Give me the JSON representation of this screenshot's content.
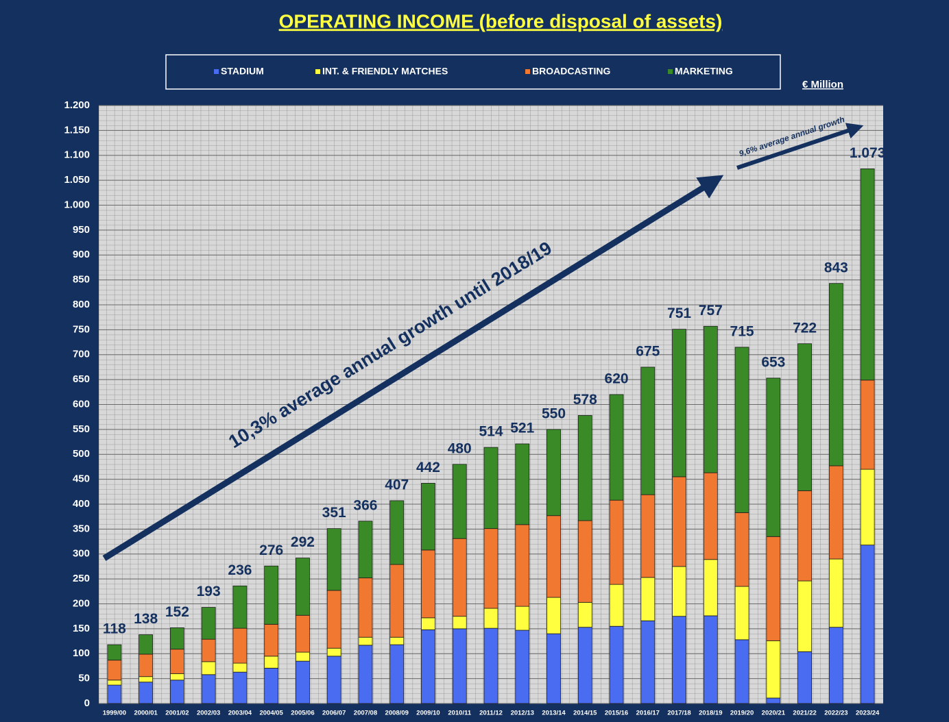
{
  "chart_data": {
    "type": "stacked_bar",
    "title": "OPERATING INCOME (before disposal of assets)",
    "unit_label": "€ Million",
    "annotations": [
      "10,3% average annual growth until 2018/19",
      "9,6% average annual growth"
    ],
    "categories": [
      "1999/00",
      "2000/01",
      "2001/02",
      "2002/03",
      "2003/04",
      "2004/05",
      "2005/06",
      "2006/07",
      "2007/08",
      "2008/09",
      "2009/10",
      "2010/11",
      "2011/12",
      "2012/13",
      "2013/14",
      "2014/15",
      "2015/16",
      "2016/17",
      "2017/18",
      "2018/19",
      "2019/20",
      "2020/21",
      "2021/22",
      "2022/23",
      "2023/24"
    ],
    "series": [
      {
        "name": "STADIUM",
        "color": "#4a6cf0",
        "values": [
          37,
          43,
          47,
          58,
          63,
          71,
          85,
          95,
          117,
          118,
          148,
          150,
          151,
          147,
          140,
          153,
          155,
          166,
          175,
          176,
          128,
          11,
          104,
          153,
          318
        ]
      },
      {
        "name": "INT. & FRIENDLY MATCHES",
        "color": "#ffff40",
        "values": [
          10,
          11,
          13,
          26,
          18,
          24,
          18,
          16,
          16,
          15,
          24,
          25,
          40,
          48,
          73,
          50,
          84,
          87,
          100,
          113,
          107,
          115,
          142,
          137,
          152
        ]
      },
      {
        "name": "BROADCASTING",
        "color": "#f07830",
        "values": [
          40,
          45,
          49,
          45,
          70,
          64,
          74,
          116,
          119,
          146,
          136,
          156,
          160,
          164,
          164,
          164,
          169,
          166,
          180,
          174,
          148,
          209,
          181,
          187,
          179
        ]
      },
      {
        "name": "MARKETING",
        "color": "#3a8a28",
        "values": [
          31,
          39,
          43,
          64,
          85,
          117,
          115,
          124,
          114,
          128,
          134,
          149,
          163,
          162,
          173,
          211,
          212,
          256,
          296,
          294,
          332,
          318,
          295,
          366,
          424
        ]
      }
    ],
    "totals": {
      "values": [
        118,
        138,
        152,
        193,
        236,
        276,
        292,
        351,
        366,
        407,
        442,
        480,
        514,
        521,
        550,
        578,
        620,
        675,
        751,
        757,
        715,
        653,
        722,
        843,
        1073
      ],
      "value_labels": [
        "118",
        "138",
        "152",
        "193",
        "236",
        "276",
        "292",
        "351",
        "366",
        "407",
        "442",
        "480",
        "514",
        "521",
        "550",
        "578",
        "620",
        "675",
        "751",
        "757",
        "715",
        "653",
        "722",
        "843",
        "1.073"
      ]
    },
    "ylim": [
      0,
      1200
    ],
    "yticks": [
      0,
      50,
      100,
      150,
      200,
      250,
      300,
      350,
      400,
      450,
      500,
      550,
      600,
      650,
      700,
      750,
      800,
      850,
      900,
      950,
      {
        "value": 1000,
        "label": "1.000"
      },
      {
        "value": 1050,
        "label": "1.050"
      },
      {
        "value": 1100,
        "label": "1.100"
      },
      {
        "value": 1150,
        "label": "1.150"
      },
      {
        "value": 1200,
        "label": "1.200"
      }
    ],
    "grid": true
  }
}
